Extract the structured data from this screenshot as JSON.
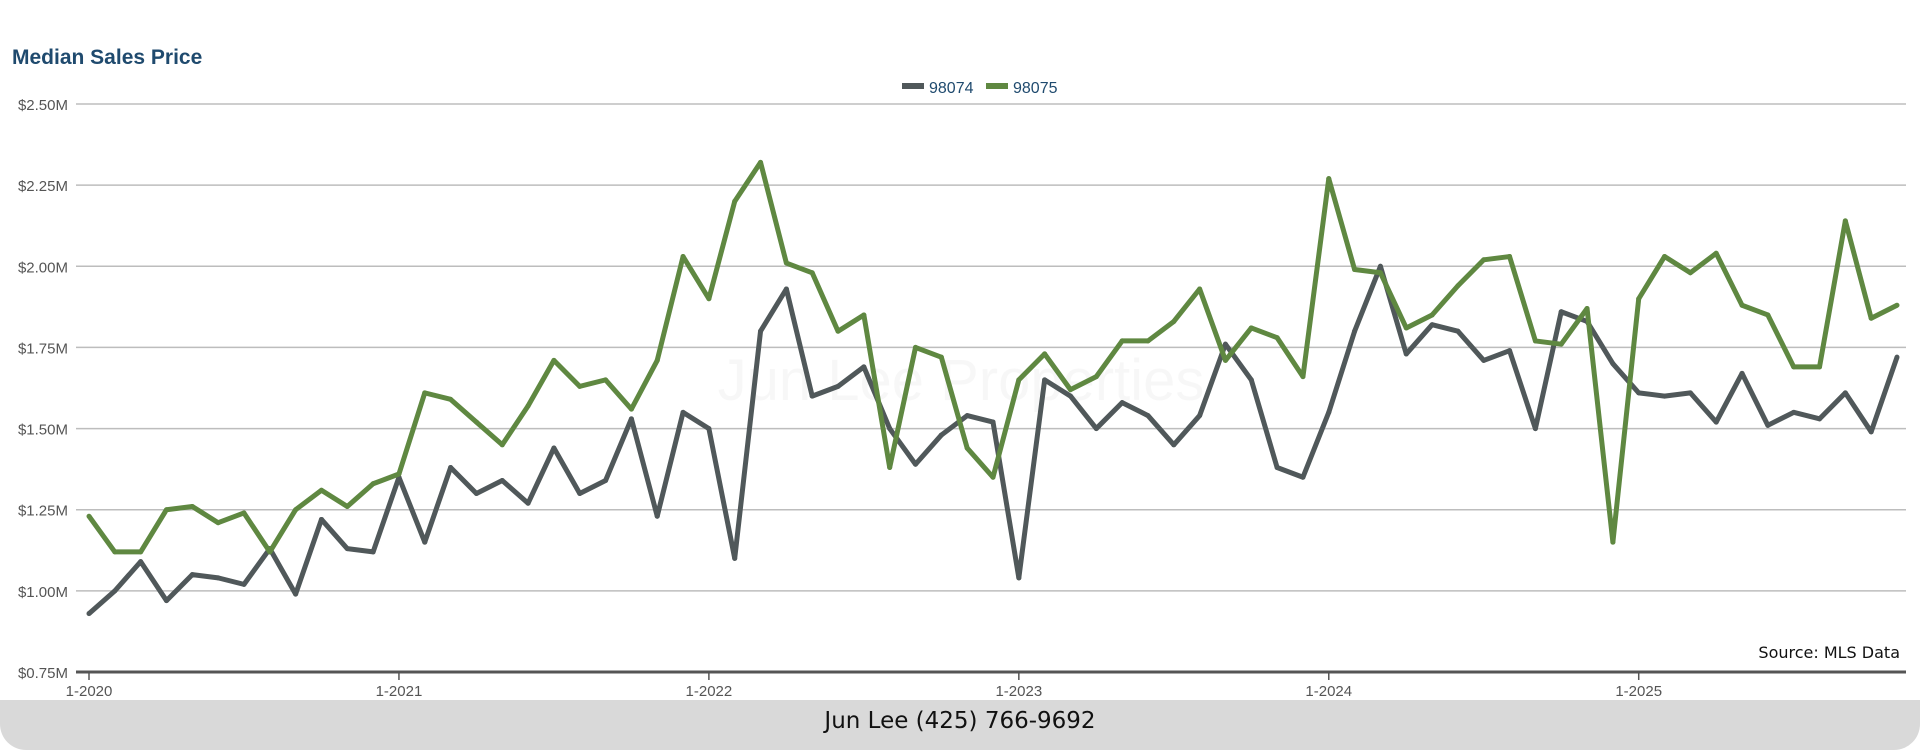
{
  "chart_data": {
    "type": "line",
    "title": "Median Sales Price",
    "source_note": "Source: MLS Data",
    "watermark": "Jun Lee Properties",
    "legend_position": "top-center",
    "grid": true,
    "ylim": [
      0.75,
      2.5
    ],
    "y_ticks": [
      "$0.75M",
      "$1.00M",
      "$1.25M",
      "$1.50M",
      "$1.75M",
      "$2.00M",
      "$2.25M",
      "$2.50M"
    ],
    "y_tick_values": [
      0.75,
      1.0,
      1.25,
      1.5,
      1.75,
      2.0,
      2.25,
      2.5
    ],
    "x_ticks": [
      "1-2020",
      "1-2021",
      "1-2022",
      "1-2023",
      "1-2024",
      "1-2025"
    ],
    "x_start": "1-2020",
    "x_unit": "month",
    "y_unit": "$M",
    "series": [
      {
        "name": "98074",
        "color": "#50585a",
        "values": [
          0.93,
          1.0,
          1.09,
          0.97,
          1.05,
          1.04,
          1.02,
          1.13,
          0.99,
          1.22,
          1.13,
          1.12,
          1.35,
          1.15,
          1.38,
          1.3,
          1.34,
          1.27,
          1.44,
          1.3,
          1.34,
          1.53,
          1.23,
          1.55,
          1.5,
          1.1,
          1.8,
          1.93,
          1.6,
          1.63,
          1.69,
          1.5,
          1.39,
          1.48,
          1.54,
          1.52,
          1.04,
          1.65,
          1.6,
          1.5,
          1.58,
          1.54,
          1.45,
          1.54,
          1.76,
          1.65,
          1.38,
          1.35,
          1.55,
          1.8,
          2.0,
          1.73,
          1.82,
          1.8,
          1.71,
          1.74,
          1.5,
          1.86,
          1.83,
          1.7,
          1.61,
          1.6,
          1.61,
          1.52,
          1.67,
          1.51,
          1.55,
          1.53,
          1.61,
          1.49,
          1.72
        ]
      },
      {
        "name": "98075",
        "color": "#5f8841",
        "values": [
          1.23,
          1.12,
          1.12,
          1.25,
          1.26,
          1.21,
          1.24,
          1.12,
          1.25,
          1.31,
          1.26,
          1.33,
          1.36,
          1.61,
          1.59,
          1.52,
          1.45,
          1.57,
          1.71,
          1.63,
          1.65,
          1.56,
          1.71,
          2.03,
          1.9,
          2.2,
          2.32,
          2.01,
          1.98,
          1.8,
          1.85,
          1.38,
          1.75,
          1.72,
          1.44,
          1.35,
          1.65,
          1.73,
          1.62,
          1.66,
          1.77,
          1.77,
          1.83,
          1.93,
          1.71,
          1.81,
          1.78,
          1.66,
          2.27,
          1.99,
          1.98,
          1.81,
          1.85,
          1.94,
          2.02,
          2.03,
          1.77,
          1.76,
          1.87,
          1.15,
          1.9,
          2.03,
          1.98,
          2.04,
          1.88,
          1.85,
          1.69,
          1.69,
          2.14,
          1.84,
          1.88
        ]
      }
    ]
  },
  "footer": {
    "contact": "Jun Lee (425) 766-9692"
  }
}
